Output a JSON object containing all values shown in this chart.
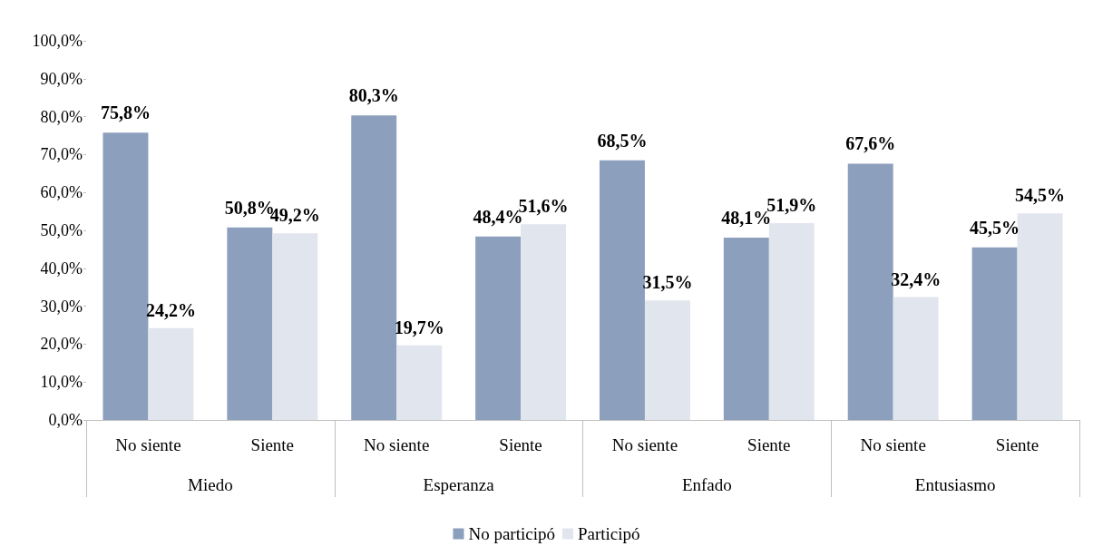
{
  "chart_data": {
    "type": "bar",
    "categories": [
      "No siente",
      "Siente",
      "No siente",
      "Siente",
      "No siente",
      "Siente",
      "No siente",
      "Siente"
    ],
    "annotations": [
      "Miedo",
      "Esperanza",
      "Enfado",
      "Entusiasmo"
    ],
    "series": [
      {
        "name": "No participó",
        "color": "#8c9fbd",
        "values": [
          75.8,
          50.8,
          80.3,
          48.4,
          68.5,
          48.1,
          67.6,
          45.5
        ],
        "value_labels": [
          "75,8%",
          "50,8%",
          "80,3%",
          "48,4%",
          "68,5%",
          "48,1%",
          "67,6%",
          "45,5%"
        ]
      },
      {
        "name": "Participó",
        "color": "#e1e5ed",
        "values": [
          24.2,
          49.2,
          19.7,
          51.6,
          31.5,
          51.9,
          32.4,
          54.5
        ],
        "value_labels": [
          "24,2%",
          "49,2%",
          "19,7%",
          "51,6%",
          "31,5%",
          "51,9%",
          "32,4%",
          "54,5%"
        ]
      }
    ],
    "ylim": [
      0,
      100
    ],
    "yticks": [
      {
        "value": 0,
        "label": "0,0%"
      },
      {
        "value": 10,
        "label": "10,0%"
      },
      {
        "value": 20,
        "label": "20,0%"
      },
      {
        "value": 30,
        "label": "30,0%"
      },
      {
        "value": 40,
        "label": "40,0%"
      },
      {
        "value": 50,
        "label": "50,0%"
      },
      {
        "value": 60,
        "label": "60,0%"
      },
      {
        "value": 70,
        "label": "70,0%"
      },
      {
        "value": 80,
        "label": "80,0%"
      },
      {
        "value": 90,
        "label": "90,0%"
      },
      {
        "value": 100,
        "label": "100,0%"
      }
    ],
    "grid": false,
    "legend": "bottom"
  }
}
